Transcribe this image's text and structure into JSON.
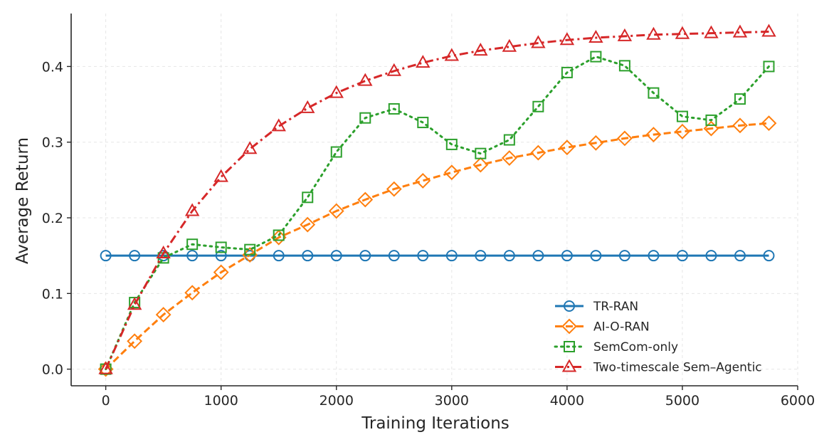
{
  "chart_data": {
    "type": "line",
    "title": "",
    "xlabel": "Training Iterations",
    "ylabel": "Average Return",
    "xlim": [
      -300,
      6000
    ],
    "ylim": [
      -0.022,
      0.47
    ],
    "xticks": [
      0,
      1000,
      2000,
      3000,
      4000,
      5000,
      6000
    ],
    "xtick_labels": [
      "0",
      "1000",
      "2000",
      "3000",
      "4000",
      "5000",
      "6000"
    ],
    "yticks": [
      0.0,
      0.1,
      0.2,
      0.3,
      0.4
    ],
    "ytick_labels": [
      "0.0",
      "0.1",
      "0.2",
      "0.3",
      "0.4"
    ],
    "grid": true,
    "legend_position": "lower-right",
    "x": [
      0,
      250,
      500,
      750,
      1000,
      1250,
      1500,
      1750,
      2000,
      2250,
      2500,
      2750,
      3000,
      3250,
      3500,
      3750,
      4000,
      4250,
      4500,
      4750,
      5000,
      5250,
      5500,
      5750
    ],
    "series": [
      {
        "name": "TR-RAN",
        "color": "#1f77b4",
        "marker": "circle",
        "dash": "solid",
        "values": [
          0.15,
          0.15,
          0.15,
          0.15,
          0.15,
          0.15,
          0.15,
          0.15,
          0.15,
          0.15,
          0.15,
          0.15,
          0.15,
          0.15,
          0.15,
          0.15,
          0.15,
          0.15,
          0.15,
          0.15,
          0.15,
          0.15,
          0.15,
          0.15
        ]
      },
      {
        "name": "AI-O-RAN",
        "color": "#ff7f0e",
        "marker": "diamond",
        "dash": "dashed",
        "values": [
          0.0,
          0.037,
          0.072,
          0.101,
          0.128,
          0.151,
          0.174,
          0.191,
          0.209,
          0.224,
          0.238,
          0.249,
          0.26,
          0.27,
          0.279,
          0.286,
          0.293,
          0.299,
          0.305,
          0.31,
          0.314,
          0.318,
          0.322,
          0.325
        ]
      },
      {
        "name": "SemCom-only",
        "color": "#2ca02c",
        "marker": "square",
        "dash": "dotted",
        "values": [
          0.0,
          0.088,
          0.147,
          0.165,
          0.161,
          0.158,
          0.177,
          0.227,
          0.287,
          0.332,
          0.344,
          0.326,
          0.297,
          0.285,
          0.303,
          0.347,
          0.392,
          0.413,
          0.401,
          0.365,
          0.334,
          0.329,
          0.357,
          0.4
        ]
      },
      {
        "name": "Two-timescale Sem–Agentic",
        "color": "#d62728",
        "marker": "triangle",
        "dash": "dashdot",
        "values": [
          0.0,
          0.085,
          0.153,
          0.209,
          0.254,
          0.291,
          0.321,
          0.345,
          0.365,
          0.381,
          0.394,
          0.405,
          0.414,
          0.421,
          0.426,
          0.431,
          0.435,
          0.438,
          0.44,
          0.442,
          0.443,
          0.444,
          0.445,
          0.446
        ]
      }
    ]
  }
}
